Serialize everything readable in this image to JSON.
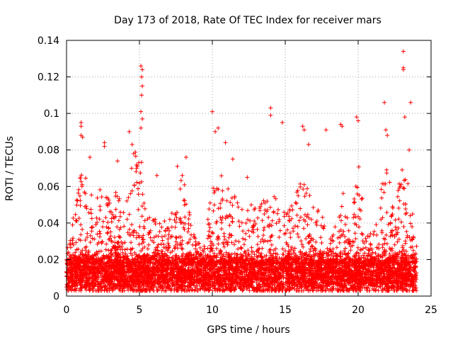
{
  "chart_data": {
    "type": "scatter",
    "title": "Day 173 of 2018, Rate Of TEC Index for receiver mars",
    "xlabel": "GPS time / hours",
    "ylabel": "ROTI / TECUs",
    "xlim": [
      0,
      25
    ],
    "ylim": [
      0,
      0.14
    ],
    "xticks": [
      0,
      5,
      10,
      15,
      20,
      25
    ],
    "xtick_labels": [
      "0",
      "5",
      "10",
      "15",
      "20",
      "25"
    ],
    "yticks": [
      0,
      0.02,
      0.04,
      0.06,
      0.08,
      0.1,
      0.12,
      0.14
    ],
    "ytick_labels": [
      "0",
      "0.02",
      "0.04",
      "0.06",
      "0.08",
      "0.1",
      "0.12",
      "0.14"
    ],
    "grid": true,
    "marker": "+",
    "marker_color": "#ff0000",
    "series_name": "ROTI",
    "x_range_hours": [
      0,
      24
    ],
    "baseline_roti": 0.012,
    "notable_points": [
      {
        "x": 5.1,
        "y": 0.126
      },
      {
        "x": 5.2,
        "y": 0.124
      },
      {
        "x": 5.15,
        "y": 0.12
      },
      {
        "x": 5.2,
        "y": 0.115
      },
      {
        "x": 5.15,
        "y": 0.11
      },
      {
        "x": 5.1,
        "y": 0.101
      },
      {
        "x": 5.2,
        "y": 0.097
      },
      {
        "x": 5.1,
        "y": 0.092
      },
      {
        "x": 23.1,
        "y": 0.134
      },
      {
        "x": 23.1,
        "y": 0.125
      },
      {
        "x": 23.1,
        "y": 0.124
      },
      {
        "x": 23.6,
        "y": 0.106
      },
      {
        "x": 10.0,
        "y": 0.101
      },
      {
        "x": 14.0,
        "y": 0.103
      },
      {
        "x": 14.0,
        "y": 0.099
      },
      {
        "x": 21.8,
        "y": 0.106
      },
      {
        "x": 1.0,
        "y": 0.095
      },
      {
        "x": 1.0,
        "y": 0.093
      },
      {
        "x": 1.0,
        "y": 0.088
      },
      {
        "x": 1.1,
        "y": 0.087
      },
      {
        "x": 4.3,
        "y": 0.09
      },
      {
        "x": 10.4,
        "y": 0.092
      },
      {
        "x": 10.2,
        "y": 0.09
      },
      {
        "x": 18.8,
        "y": 0.094
      },
      {
        "x": 18.9,
        "y": 0.093
      },
      {
        "x": 19.9,
        "y": 0.098
      },
      {
        "x": 20.0,
        "y": 0.096
      },
      {
        "x": 16.2,
        "y": 0.093
      },
      {
        "x": 16.3,
        "y": 0.091
      },
      {
        "x": 14.8,
        "y": 0.095
      },
      {
        "x": 17.8,
        "y": 0.091
      },
      {
        "x": 21.9,
        "y": 0.091
      },
      {
        "x": 22.0,
        "y": 0.088
      },
      {
        "x": 23.2,
        "y": 0.098
      },
      {
        "x": 23.5,
        "y": 0.08
      },
      {
        "x": 2.6,
        "y": 0.084
      },
      {
        "x": 2.6,
        "y": 0.082
      },
      {
        "x": 1.6,
        "y": 0.076
      },
      {
        "x": 8.2,
        "y": 0.076
      },
      {
        "x": 10.9,
        "y": 0.084
      },
      {
        "x": 4.5,
        "y": 0.083
      },
      {
        "x": 4.6,
        "y": 0.078
      },
      {
        "x": 16.6,
        "y": 0.083
      },
      {
        "x": 11.4,
        "y": 0.075
      },
      {
        "x": 3.5,
        "y": 0.074
      },
      {
        "x": 6.2,
        "y": 0.066
      },
      {
        "x": 7.6,
        "y": 0.071
      },
      {
        "x": 12.4,
        "y": 0.065
      }
    ],
    "activity_envelope": [
      {
        "x": 0.0,
        "y": 0.027
      },
      {
        "x": 0.5,
        "y": 0.045
      },
      {
        "x": 1.0,
        "y": 0.07
      },
      {
        "x": 1.5,
        "y": 0.065
      },
      {
        "x": 2.0,
        "y": 0.05
      },
      {
        "x": 2.5,
        "y": 0.07
      },
      {
        "x": 3.0,
        "y": 0.05
      },
      {
        "x": 3.5,
        "y": 0.06
      },
      {
        "x": 4.0,
        "y": 0.045
      },
      {
        "x": 4.5,
        "y": 0.075
      },
      {
        "x": 5.0,
        "y": 0.085
      },
      {
        "x": 5.5,
        "y": 0.045
      },
      {
        "x": 6.0,
        "y": 0.047
      },
      {
        "x": 6.5,
        "y": 0.04
      },
      {
        "x": 7.0,
        "y": 0.045
      },
      {
        "x": 7.5,
        "y": 0.06
      },
      {
        "x": 8.0,
        "y": 0.07
      },
      {
        "x": 8.5,
        "y": 0.045
      },
      {
        "x": 9.0,
        "y": 0.03
      },
      {
        "x": 9.5,
        "y": 0.028
      },
      {
        "x": 10.0,
        "y": 0.065
      },
      {
        "x": 10.5,
        "y": 0.07
      },
      {
        "x": 11.0,
        "y": 0.06
      },
      {
        "x": 11.5,
        "y": 0.055
      },
      {
        "x": 12.0,
        "y": 0.05
      },
      {
        "x": 12.5,
        "y": 0.05
      },
      {
        "x": 13.0,
        "y": 0.055
      },
      {
        "x": 13.5,
        "y": 0.055
      },
      {
        "x": 14.0,
        "y": 0.055
      },
      {
        "x": 14.5,
        "y": 0.06
      },
      {
        "x": 15.0,
        "y": 0.045
      },
      {
        "x": 15.5,
        "y": 0.05
      },
      {
        "x": 16.0,
        "y": 0.07
      },
      {
        "x": 16.5,
        "y": 0.06
      },
      {
        "x": 17.0,
        "y": 0.05
      },
      {
        "x": 17.5,
        "y": 0.045
      },
      {
        "x": 18.0,
        "y": 0.03
      },
      {
        "x": 18.5,
        "y": 0.04
      },
      {
        "x": 19.0,
        "y": 0.06
      },
      {
        "x": 19.5,
        "y": 0.04
      },
      {
        "x": 20.0,
        "y": 0.075
      },
      {
        "x": 20.5,
        "y": 0.04
      },
      {
        "x": 21.0,
        "y": 0.035
      },
      {
        "x": 21.5,
        "y": 0.065
      },
      {
        "x": 22.0,
        "y": 0.075
      },
      {
        "x": 22.5,
        "y": 0.05
      },
      {
        "x": 23.0,
        "y": 0.07
      },
      {
        "x": 23.5,
        "y": 0.06
      },
      {
        "x": 24.0,
        "y": 0.03
      }
    ]
  }
}
